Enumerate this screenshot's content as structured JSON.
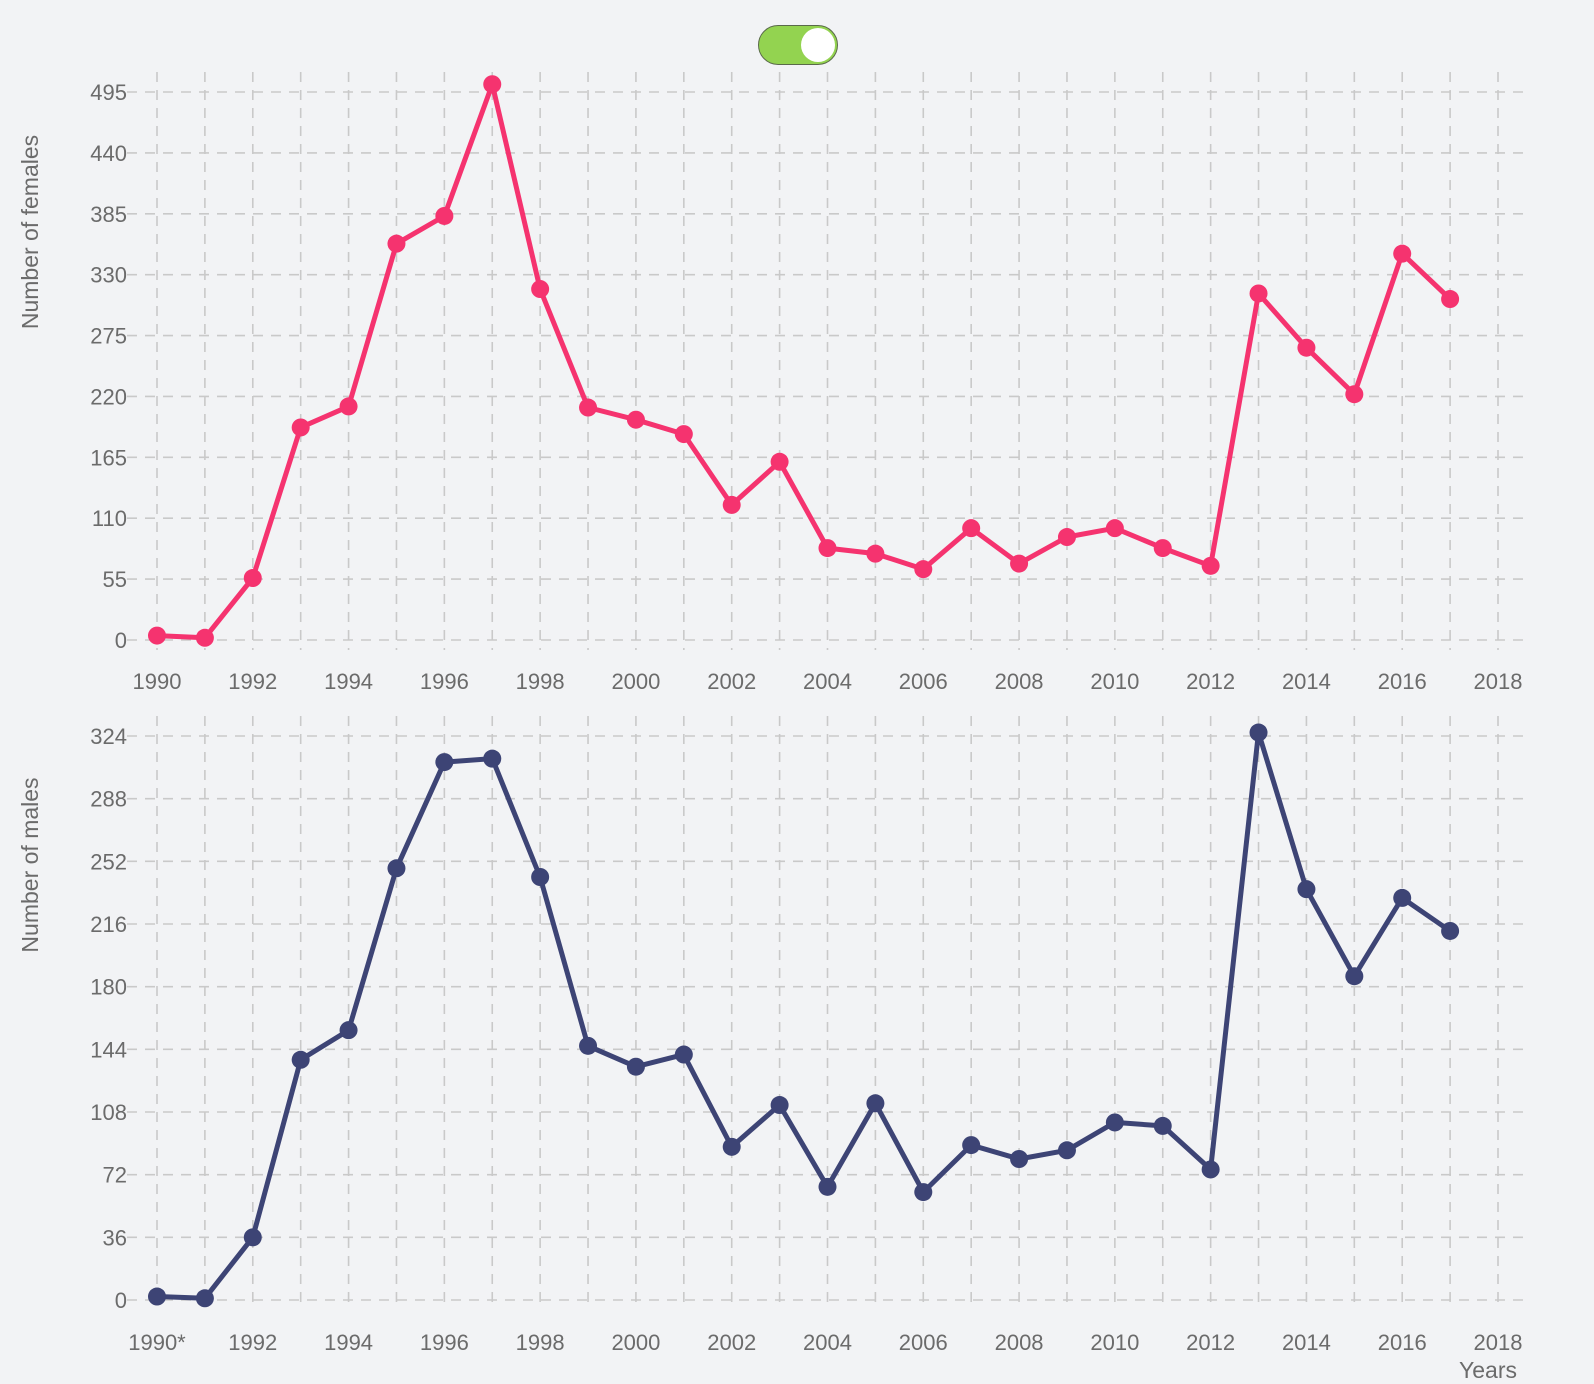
{
  "toggle": {
    "state": "on",
    "color_on": "#93d350"
  },
  "chart_data": [
    {
      "type": "line",
      "title": "",
      "xlabel": "",
      "ylabel": "Number of females",
      "x_ticks": [
        "1990",
        "1992",
        "1994",
        "1996",
        "1998",
        "2000",
        "2002",
        "2004",
        "2006",
        "2008",
        "2010",
        "2012",
        "2014",
        "2016",
        "2018"
      ],
      "y_ticks": [
        0,
        55,
        110,
        165,
        220,
        275,
        330,
        385,
        440,
        495
      ],
      "xlim": [
        1990,
        2018
      ],
      "ylim": [
        0,
        495
      ],
      "grid": true,
      "color": "#f5336f",
      "series": [
        {
          "x": [
            1990,
            1991,
            1992,
            1993,
            1994,
            1995,
            1996,
            1997,
            1998,
            1999,
            2000,
            2001,
            2002,
            2003,
            2004,
            2005,
            2006,
            2007,
            2008,
            2009,
            2010,
            2011,
            2012,
            2013,
            2014,
            2015,
            2016,
            2017
          ],
          "values": [
            4,
            2,
            56,
            192,
            211,
            358,
            383,
            502,
            317,
            210,
            199,
            186,
            122,
            161,
            83,
            78,
            64,
            101,
            69,
            93,
            101,
            83,
            67,
            313,
            264,
            222,
            349,
            308
          ]
        }
      ]
    },
    {
      "type": "line",
      "title": "",
      "xlabel": "Years",
      "ylabel": "Number of males",
      "x_ticks": [
        "1990*",
        "1992",
        "1994",
        "1996",
        "1998",
        "2000",
        "2002",
        "2004",
        "2006",
        "2008",
        "2010",
        "2012",
        "2014",
        "2016",
        "2018"
      ],
      "y_ticks": [
        0,
        36,
        72,
        108,
        144,
        180,
        216,
        252,
        288,
        324
      ],
      "xlim": [
        1990,
        2018
      ],
      "ylim": [
        0,
        324
      ],
      "grid": true,
      "color": "#3d4475",
      "series": [
        {
          "x": [
            1990,
            1991,
            1992,
            1993,
            1994,
            1995,
            1996,
            1997,
            1998,
            1999,
            2000,
            2001,
            2002,
            2003,
            2004,
            2005,
            2006,
            2007,
            2008,
            2009,
            2010,
            2011,
            2012,
            2013,
            2014,
            2015,
            2016,
            2017
          ],
          "values": [
            2,
            1,
            36,
            138,
            155,
            248,
            309,
            311,
            243,
            146,
            134,
            141,
            88,
            112,
            65,
            113,
            62,
            89,
            81,
            86,
            102,
            100,
            75,
            326,
            236,
            186,
            231,
            212
          ]
        }
      ]
    }
  ]
}
